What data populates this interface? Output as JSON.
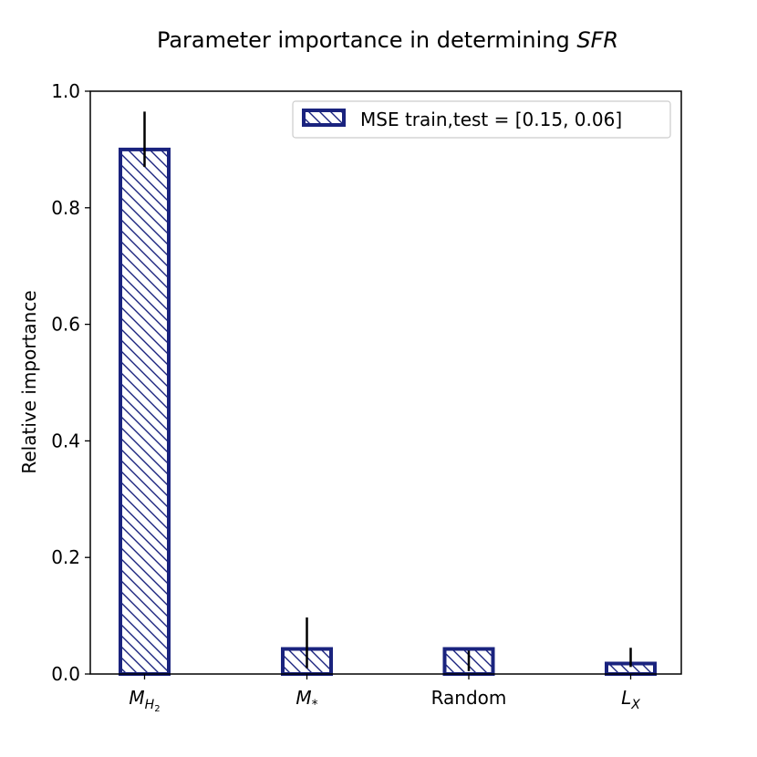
{
  "chart_data": {
    "type": "bar",
    "title": "Parameter importance in determining ",
    "title_italic": "SFR",
    "xlabel": "",
    "ylabel": "Relative importance",
    "ylim": [
      0.0,
      1.0
    ],
    "yticks": [
      "0.0",
      "0.2",
      "0.4",
      "0.6",
      "0.8",
      "1.0"
    ],
    "categories": [
      {
        "base": "M",
        "sub": "H",
        "subsub": "2"
      },
      {
        "base": "M",
        "sub": "*",
        "subsub": ""
      },
      {
        "base": "Random",
        "sub": "",
        "subsub": "",
        "plain": true
      },
      {
        "base": "L",
        "sub": "X",
        "subsub": ""
      }
    ],
    "values": [
      0.9,
      0.043,
      0.043,
      0.018
    ],
    "error_low": [
      0.87,
      0.01,
      0.005,
      0.012
    ],
    "error_high": [
      0.965,
      0.097,
      0.04,
      0.045
    ],
    "legend": "MSE train,test = [0.15, 0.06]",
    "legend_position": "top-right",
    "bar_color": "#1a237e",
    "hatch": "\\\\"
  }
}
